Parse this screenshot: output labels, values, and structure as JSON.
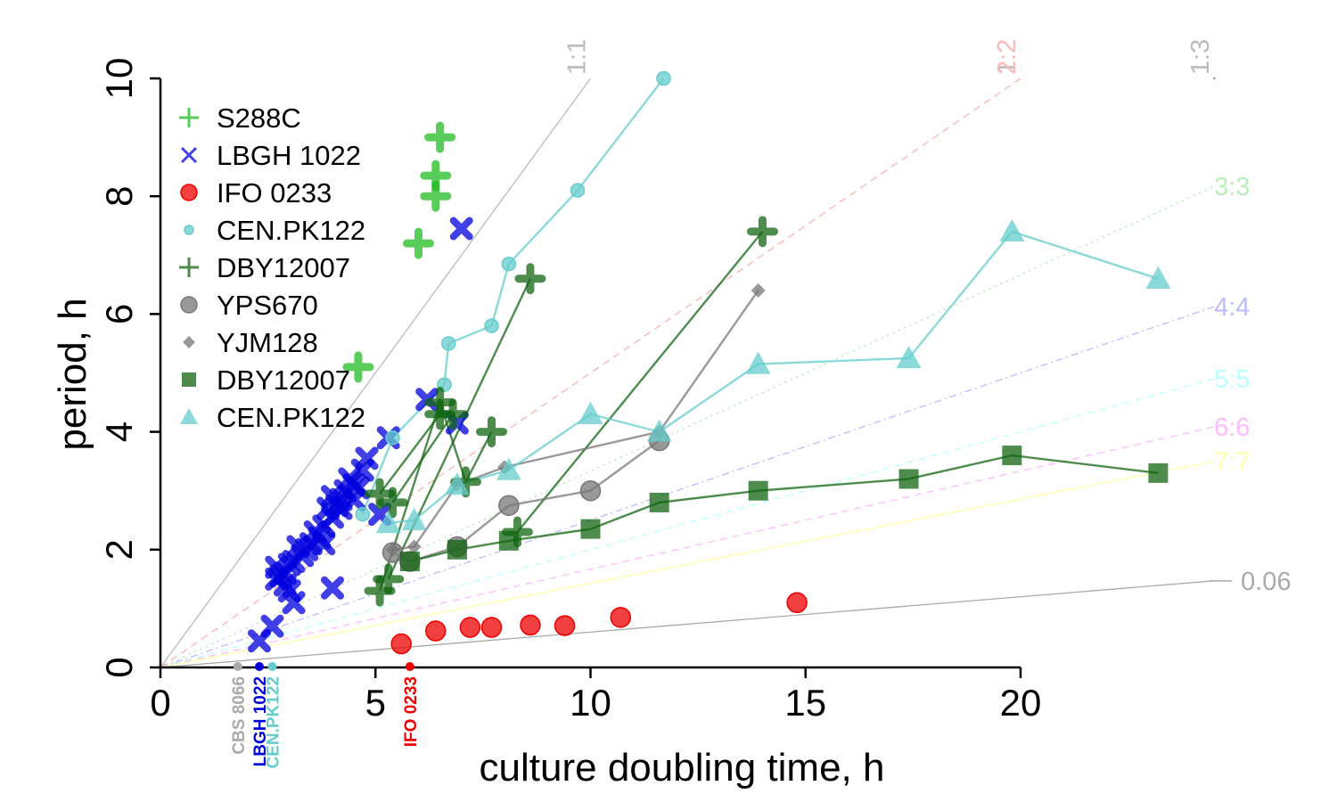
{
  "chart_data": {
    "type": "scatter",
    "xlabel": "culture doubling time, h",
    "ylabel": "period, h",
    "xlim": [
      0,
      24.5
    ],
    "ylim": [
      0,
      10
    ],
    "x_ticks": [
      "0",
      "5",
      "10",
      "15",
      "20"
    ],
    "y_ticks": [
      "0",
      "2",
      "4",
      "6",
      "8",
      "10"
    ],
    "legend_position": "top-left",
    "legend": [
      {
        "label": "S288C",
        "color": "#22bb22",
        "marker": "plus"
      },
      {
        "label": "LBGH 1022",
        "color": "#0000dd",
        "marker": "cross"
      },
      {
        "label": "IFO 0233",
        "color": "#ee0000",
        "marker": "circle"
      },
      {
        "label": "CEN.PK122",
        "color": "#66cccc",
        "marker": "small-circle"
      },
      {
        "label": "DBY12007",
        "color": "#116611",
        "marker": "plus"
      },
      {
        "label": "YPS670",
        "color": "#777777",
        "marker": "circle"
      },
      {
        "label": "YJM128",
        "color": "#777777",
        "marker": "diamond"
      },
      {
        "label": "DBY12007",
        "color": "#116611",
        "marker": "square"
      },
      {
        "label": "CEN.PK122",
        "color": "#66cccc",
        "marker": "triangle"
      }
    ],
    "ratio_lines": [
      {
        "label": "1:1",
        "slope": 1.0,
        "color": "#bbbbbb",
        "dash": "",
        "label_pos": "top"
      },
      {
        "label": "1:2",
        "slope": 0.5,
        "color": "#bbbbbb",
        "dash": "8,6",
        "label_pos": "top"
      },
      {
        "label": "1:3",
        "slope": 0.3333,
        "color": "#bbbbbb",
        "dash": "2,5",
        "label_pos": "top"
      },
      {
        "label": "2:2",
        "slope": 0.5,
        "color": "#ffbbbb",
        "dash": "8,6",
        "label_pos": "top"
      },
      {
        "label": "3:3",
        "slope": 0.3333,
        "color": "#bbeebb",
        "dash": "2,5",
        "label_pos": "right"
      },
      {
        "label": "4:4",
        "slope": 0.25,
        "color": "#bbbbff",
        "dash": "8,4,2,4",
        "label_pos": "right"
      },
      {
        "label": "5:5",
        "slope": 0.2,
        "color": "#bbffff",
        "dash": "8,6",
        "label_pos": "right"
      },
      {
        "label": "6:6",
        "slope": 0.1667,
        "color": "#ffbbff",
        "dash": "8,6",
        "label_pos": "right"
      },
      {
        "label": "7:7",
        "slope": 0.1429,
        "color": "#ffffaa",
        "dash": "",
        "label_pos": "right"
      },
      {
        "label": "0.06",
        "slope": 0.06,
        "color": "#aaaaaa",
        "dash": "",
        "label_pos": "right"
      }
    ],
    "strain_axis_marks": [
      {
        "label": "CBS 8066",
        "x": 1.8,
        "color": "#aaaaaa"
      },
      {
        "label": "LBGH 1022",
        "x": 2.3,
        "color": "#0000dd"
      },
      {
        "label": "CEN.PK122",
        "x": 2.6,
        "color": "#66cccc"
      },
      {
        "label": "IFO 0233",
        "x": 5.8,
        "color": "#ee0000"
      }
    ],
    "series": [
      {
        "name": "S288C",
        "marker": "plus",
        "color": "#22bb22",
        "connected": false,
        "points": [
          [
            6.5,
            9.0
          ],
          [
            6.4,
            8.35
          ],
          [
            6.4,
            8.0
          ],
          [
            6.0,
            7.2
          ],
          [
            4.6,
            5.1
          ]
        ]
      },
      {
        "name": "LBGH 1022",
        "marker": "cross",
        "color": "#0000dd",
        "connected": false,
        "points": [
          [
            7.0,
            7.45
          ],
          [
            6.9,
            4.15
          ],
          [
            6.2,
            4.55
          ],
          [
            5.3,
            3.9
          ],
          [
            4.8,
            3.55
          ],
          [
            4.7,
            3.35
          ],
          [
            4.5,
            3.1
          ],
          [
            4.4,
            3.2
          ],
          [
            4.3,
            3.0
          ],
          [
            4.2,
            2.85
          ],
          [
            4.1,
            2.75
          ],
          [
            4.0,
            2.9
          ],
          [
            3.9,
            2.7
          ],
          [
            4.0,
            2.55
          ],
          [
            4.2,
            2.7
          ],
          [
            3.8,
            2.4
          ],
          [
            3.7,
            2.2
          ],
          [
            3.6,
            2.3
          ],
          [
            3.5,
            2.1
          ],
          [
            3.4,
            2.0
          ],
          [
            3.8,
            2.1
          ],
          [
            3.3,
            1.9
          ],
          [
            3.2,
            2.05
          ],
          [
            3.1,
            1.8
          ],
          [
            3.0,
            1.75
          ],
          [
            2.9,
            1.6
          ],
          [
            2.8,
            1.55
          ],
          [
            2.7,
            1.5
          ],
          [
            2.9,
            1.4
          ],
          [
            3.0,
            1.3
          ],
          [
            3.1,
            1.1
          ],
          [
            2.7,
            1.7
          ],
          [
            4.0,
            1.35
          ],
          [
            2.6,
            0.7
          ],
          [
            2.3,
            0.45
          ],
          [
            4.5,
            2.85
          ],
          [
            5.1,
            2.6
          ],
          [
            4.6,
            3.05
          ]
        ]
      },
      {
        "name": "IFO 0233",
        "marker": "circle",
        "color": "#ee0000",
        "connected": false,
        "points": [
          [
            5.6,
            0.4
          ],
          [
            6.4,
            0.62
          ],
          [
            7.2,
            0.68
          ],
          [
            7.7,
            0.68
          ],
          [
            8.6,
            0.72
          ],
          [
            9.4,
            0.71
          ],
          [
            10.7,
            0.85
          ],
          [
            14.8,
            1.1
          ]
        ]
      },
      {
        "name": "CEN.PK122",
        "marker": "small-circle",
        "color": "#66cccc",
        "connected": true,
        "points": [
          [
            4.7,
            2.6
          ],
          [
            5.4,
            3.9
          ],
          [
            6.6,
            4.8
          ],
          [
            6.7,
            5.5
          ],
          [
            7.7,
            5.8
          ],
          [
            8.1,
            6.85
          ],
          [
            9.7,
            8.1
          ],
          [
            11.7,
            10.0
          ]
        ]
      },
      {
        "name": "DBY12007 a",
        "marker": "plus",
        "color": "#116611",
        "connected": true,
        "points": [
          [
            5.1,
            1.3
          ],
          [
            6.5,
            4.5
          ],
          [
            7.1,
            3.15
          ],
          [
            7.7,
            4.0
          ]
        ]
      },
      {
        "name": "DBY12007 b",
        "marker": "plus",
        "color": "#116611",
        "connected": true,
        "points": [
          [
            5.3,
            1.5
          ],
          [
            8.6,
            6.6
          ]
        ]
      },
      {
        "name": "DBY12007 c",
        "marker": "plus",
        "color": "#116611",
        "connected": true,
        "points": [
          [
            5.1,
            2.95
          ],
          [
            6.5,
            4.3
          ]
        ]
      },
      {
        "name": "DBY12007 d",
        "marker": "plus",
        "color": "#116611",
        "connected": true,
        "points": [
          [
            5.4,
            2.8
          ],
          [
            6.8,
            4.3
          ]
        ]
      },
      {
        "name": "DBY12007 e",
        "marker": "plus",
        "color": "#116611",
        "connected": true,
        "points": [
          [
            8.3,
            2.3
          ],
          [
            14.0,
            7.4
          ]
        ]
      },
      {
        "name": "YPS670",
        "marker": "circle",
        "color": "#777777",
        "connected": true,
        "points": [
          [
            5.4,
            1.95
          ],
          [
            5.8,
            1.8
          ],
          [
            6.9,
            2.05
          ],
          [
            8.1,
            2.75
          ],
          [
            10.0,
            3.0
          ],
          [
            11.6,
            3.85
          ]
        ]
      },
      {
        "name": "YJM128",
        "marker": "diamond",
        "color": "#777777",
        "connected": true,
        "points": [
          [
            5.4,
            2.0
          ],
          [
            5.9,
            2.05
          ],
          [
            6.9,
            3.1
          ],
          [
            8.0,
            3.4
          ],
          [
            11.6,
            4.0
          ],
          [
            13.9,
            6.4
          ]
        ]
      },
      {
        "name": "DBY12007",
        "marker": "square",
        "color": "#116611",
        "connected": true,
        "points": [
          [
            5.8,
            1.8
          ],
          [
            6.9,
            2.0
          ],
          [
            8.1,
            2.15
          ],
          [
            10.0,
            2.35
          ],
          [
            11.6,
            2.8
          ],
          [
            13.9,
            3.0
          ],
          [
            17.4,
            3.2
          ],
          [
            19.8,
            3.6
          ],
          [
            23.2,
            3.3
          ]
        ]
      },
      {
        "name": "CEN.PK122",
        "marker": "triangle",
        "color": "#66cccc",
        "connected": true,
        "points": [
          [
            5.3,
            2.45
          ],
          [
            5.9,
            2.5
          ],
          [
            6.9,
            3.1
          ],
          [
            8.1,
            3.35
          ],
          [
            10.0,
            4.3
          ],
          [
            11.6,
            4.0
          ],
          [
            13.9,
            5.15
          ],
          [
            17.4,
            5.25
          ],
          [
            19.8,
            7.4
          ],
          [
            23.2,
            6.6
          ]
        ]
      }
    ]
  }
}
